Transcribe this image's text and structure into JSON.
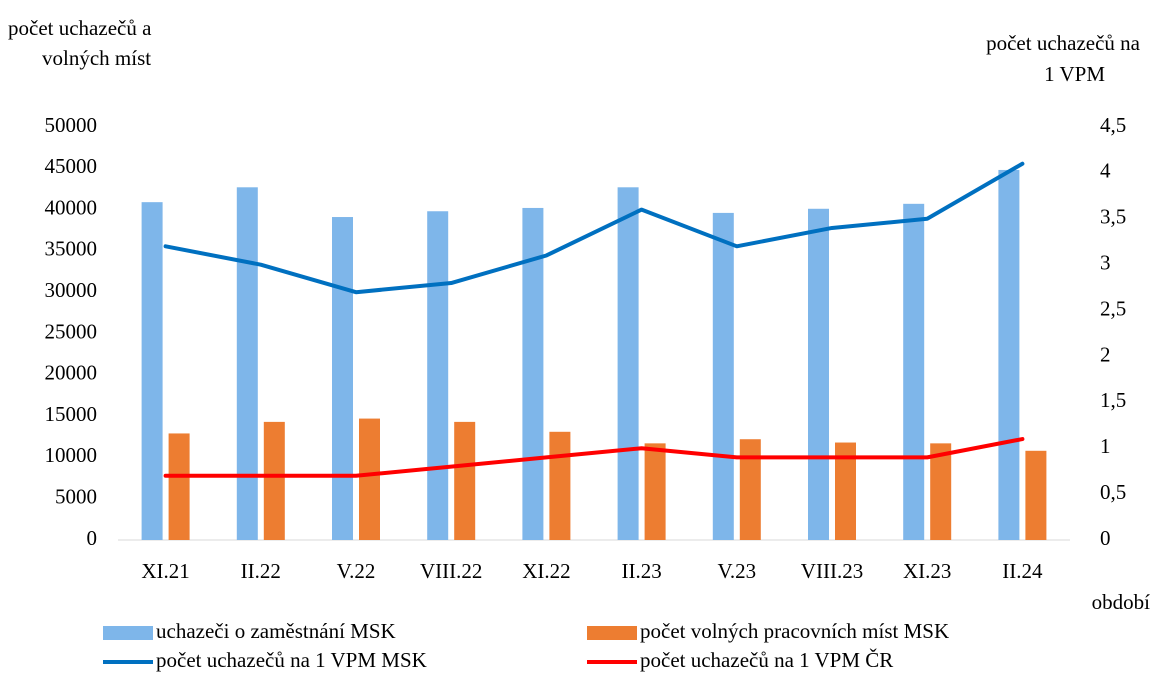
{
  "chart_data": {
    "type": "bar_line",
    "ylabel": [
      "počet  uchazečů a",
      "volných míst"
    ],
    "y2label": [
      "počet uchazečů na",
      "1 VPM"
    ],
    "xlabel": "období",
    "categories": [
      "XI.21",
      "II.22",
      "V.22",
      "VIII.22",
      "XI.22",
      "II.23",
      "V.23",
      "VIII.23",
      "XI.23",
      "II.24"
    ],
    "series": [
      {
        "name": "uchazeči o zaměstnání MSK",
        "type": "bar",
        "color": "#7eb6ea",
        "values": [
          40900,
          42700,
          39100,
          39800,
          40200,
          42700,
          39600,
          40100,
          40700,
          44800
        ]
      },
      {
        "name": "počet volných pracovních míst MSK",
        "type": "bar",
        "color": "#ed7d31",
        "values": [
          12900,
          14300,
          14700,
          14300,
          13100,
          11700,
          12200,
          11800,
          11700,
          10800
        ]
      },
      {
        "name": "počet uchazečů na 1 VPM MSK",
        "type": "line",
        "axis": "y2",
        "color": "#0070c0",
        "values": [
          3.2,
          3.0,
          2.7,
          2.8,
          3.1,
          3.6,
          3.2,
          3.4,
          3.5,
          4.1
        ]
      },
      {
        "name": "počet uchazečů na 1 VPM ČR",
        "type": "line",
        "axis": "y2",
        "color": "#ff0000",
        "values": [
          0.7,
          0.7,
          0.7,
          0.8,
          0.9,
          1.0,
          0.9,
          0.9,
          0.9,
          1.1
        ]
      }
    ],
    "ylim": [
      0,
      50000
    ],
    "yticks": [
      0,
      5000,
      10000,
      15000,
      20000,
      25000,
      30000,
      35000,
      40000,
      45000,
      50000
    ],
    "y2lim": [
      0,
      4.5
    ],
    "y2ticks": [
      0,
      {
        "value": 0.5,
        "label": "0,5"
      },
      1,
      {
        "value": 1.5,
        "label": "1,5"
      },
      2,
      {
        "value": 2.5,
        "label": "2,5"
      },
      3,
      {
        "value": 3.5,
        "label": "3,5"
      },
      4,
      {
        "value": 4.5,
        "label": "4,5"
      }
    ],
    "legend": "bottom"
  }
}
